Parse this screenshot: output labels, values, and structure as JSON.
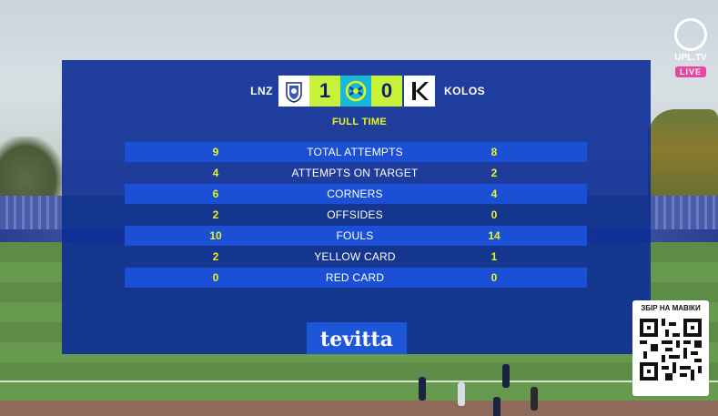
{
  "match": {
    "home_team": "LNZ",
    "away_team": "KOLOS",
    "home_score": "1",
    "away_score": "0",
    "status": "FULL TIME"
  },
  "stats": [
    {
      "label": "TOTAL ATTEMPTS",
      "home": "9",
      "away": "8"
    },
    {
      "label": "ATTEMPTS ON TARGET",
      "home": "4",
      "away": "2"
    },
    {
      "label": "CORNERS",
      "home": "6",
      "away": "4"
    },
    {
      "label": "OFFSIDES",
      "home": "2",
      "away": "0"
    },
    {
      "label": "FOULS",
      "home": "10",
      "away": "14"
    },
    {
      "label": "YELLOW CARD",
      "home": "2",
      "away": "1"
    },
    {
      "label": "RED CARD",
      "home": "0",
      "away": "0"
    }
  ],
  "sponsor": {
    "name": "tevitta"
  },
  "broadcaster": {
    "name": "UPL.TV",
    "live_label": "LIVE"
  },
  "donation": {
    "title": "ЗБІР НА МАВІКИ"
  },
  "icons": {
    "home_crest": "lnz-crest-icon",
    "away_crest": "kolos-crest-icon",
    "league": "upl-league-icon",
    "broadcaster": "upl-ball-icon",
    "qr": "qr-code-icon"
  },
  "colors": {
    "panel": "#0c2c96",
    "row_highlight": "#1b4fd6",
    "accent": "#c8f23a",
    "stat_value": "#e8f520",
    "live": "#e5489e"
  }
}
